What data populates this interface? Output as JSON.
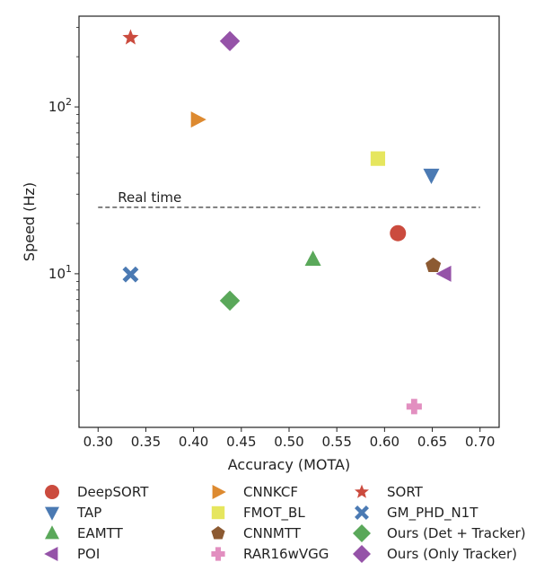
{
  "chart_data": {
    "type": "scatter",
    "title": "",
    "xlabel": "Accuracy (MOTA)",
    "ylabel": "Speed (Hz)",
    "xscale": "linear",
    "yscale": "log",
    "xlim": [
      0.28,
      0.72
    ],
    "ylim": [
      1.2,
      350
    ],
    "x_ticks": [
      0.3,
      0.35,
      0.4,
      0.45,
      0.5,
      0.55,
      0.6,
      0.65,
      0.7
    ],
    "x_tick_labels": [
      "0.30",
      "0.35",
      "0.40",
      "0.45",
      "0.50",
      "0.55",
      "0.60",
      "0.65",
      "0.70"
    ],
    "y_major_ticks": [
      10,
      100
    ],
    "y_tick_labels": [
      {
        "base": "10",
        "exp": "1"
      },
      {
        "base": "10",
        "exp": "2"
      }
    ],
    "y_minor_ticks": [
      2,
      3,
      4,
      5,
      6,
      7,
      8,
      9,
      20,
      30,
      40,
      50,
      60,
      70,
      80,
      90,
      200,
      300
    ],
    "reference_line": {
      "label": "Real time",
      "y": 25,
      "x_range": [
        0.3,
        0.7
      ],
      "style": "dashed"
    },
    "legend_position": "bottom",
    "series": [
      {
        "name": "DeepSORT",
        "x": 0.614,
        "y": 17.5,
        "marker": "circle",
        "color": "#cb4b3e"
      },
      {
        "name": "TAP",
        "x": 0.649,
        "y": 39,
        "marker": "triangle-down",
        "color": "#4b7ab3"
      },
      {
        "name": "EAMTT",
        "x": 0.525,
        "y": 12.2,
        "marker": "triangle-up",
        "color": "#5aa85a"
      },
      {
        "name": "POI",
        "x": 0.663,
        "y": 10,
        "marker": "triangle-left",
        "color": "#9553a8"
      },
      {
        "name": "CNNKCF",
        "x": 0.404,
        "y": 84,
        "marker": "triangle-right",
        "color": "#dd8a30"
      },
      {
        "name": "FMOT_BL",
        "x": 0.593,
        "y": 49,
        "marker": "square",
        "color": "#e6e65e"
      },
      {
        "name": "CNNMTT",
        "x": 0.651,
        "y": 11.2,
        "marker": "pentagon",
        "color": "#8c5a32"
      },
      {
        "name": "RAR16wVGG",
        "x": 0.631,
        "y": 1.6,
        "marker": "plus",
        "color": "#e28fc0"
      },
      {
        "name": "SORT",
        "x": 0.334,
        "y": 260,
        "marker": "star",
        "color": "#cb4b3e"
      },
      {
        "name": "GM_PHD_N1T",
        "x": 0.334,
        "y": 9.9,
        "marker": "x",
        "color": "#4b7ab3"
      },
      {
        "name": "Ours (Det + Tracker)",
        "x": 0.438,
        "y": 6.9,
        "marker": "diamond",
        "color": "#5aa85a"
      },
      {
        "name": "Ours (Only Tracker)",
        "x": 0.438,
        "y": 248,
        "marker": "diamond",
        "color": "#9553a8"
      }
    ]
  }
}
